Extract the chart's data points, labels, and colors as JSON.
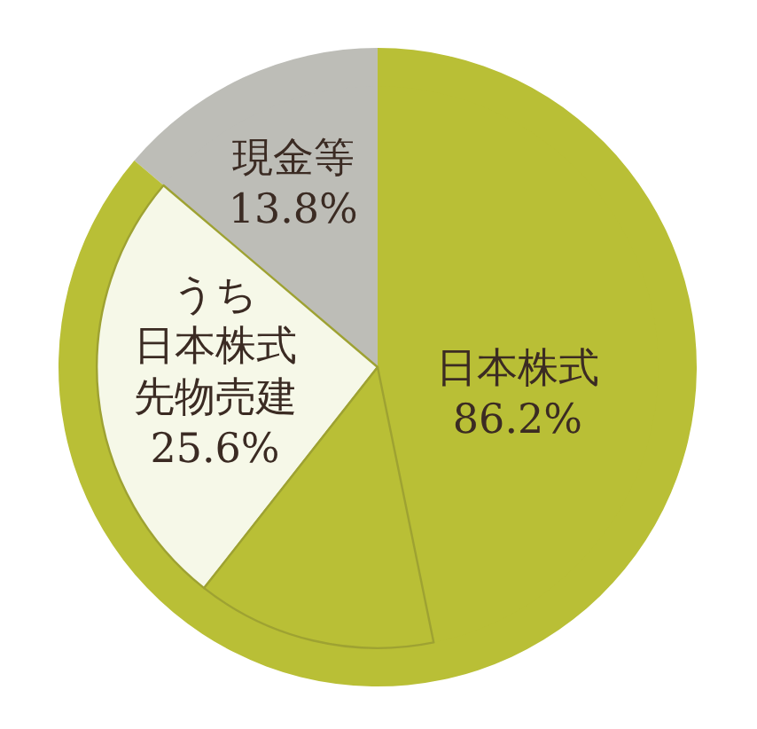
{
  "chart_data": {
    "type": "pie",
    "categories": [
      "現金等",
      null,
      null,
      "日本株式"
    ],
    "series": [
      {
        "values": [
          13.8,
          null,
          null,
          86.2
        ],
        "colors": [
          "#bdbdb7",
          null,
          null,
          "#b9bf36"
        ],
        "value_labels": [
          "13.8%",
          null,
          null,
          "86.2%"
        ]
      },
      {
        "values": [
          13.8,
          25.6,
          13.8,
          46.8
        ],
        "colors": [
          "#bdbdb7",
          "#f6f8e8",
          "#b9bf36",
          "#b9bf36"
        ],
        "value_labels": [
          null,
          "25.6%",
          null,
          null
        ]
      }
    ],
    "annotations": [
      "うち日本株式先物売建"
    ]
  }
}
